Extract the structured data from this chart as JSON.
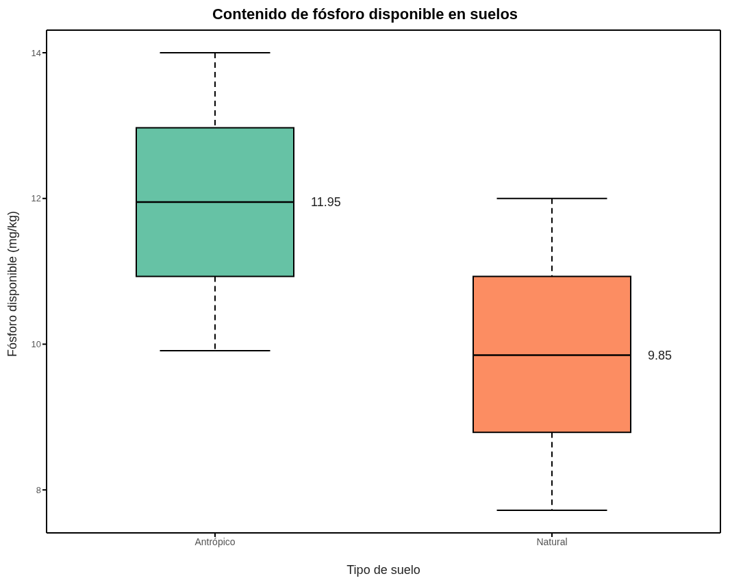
{
  "chart_data": {
    "type": "box",
    "title": "Contenido de fósforo disponible en suelos",
    "xlabel": "Tipo de suelo",
    "ylabel": "Fósforo disponible (mg/kg)",
    "categories": [
      "Antrópico",
      "Natural"
    ],
    "colors": [
      "#66c2a5",
      "#fc8d62"
    ],
    "boxes": [
      {
        "low": 9.91,
        "q1": 10.93,
        "median": 11.95,
        "q3": 12.97,
        "high": 14
      },
      {
        "low": 7.72,
        "q1": 8.79,
        "median": 9.85,
        "q3": 10.93,
        "high": 12
      }
    ],
    "ylim": [
      7.41,
      14.31
    ],
    "yticks": [
      8,
      10,
      12,
      14
    ],
    "line_style": "dashed",
    "annotations": [
      "11.95",
      "9.85"
    ]
  }
}
